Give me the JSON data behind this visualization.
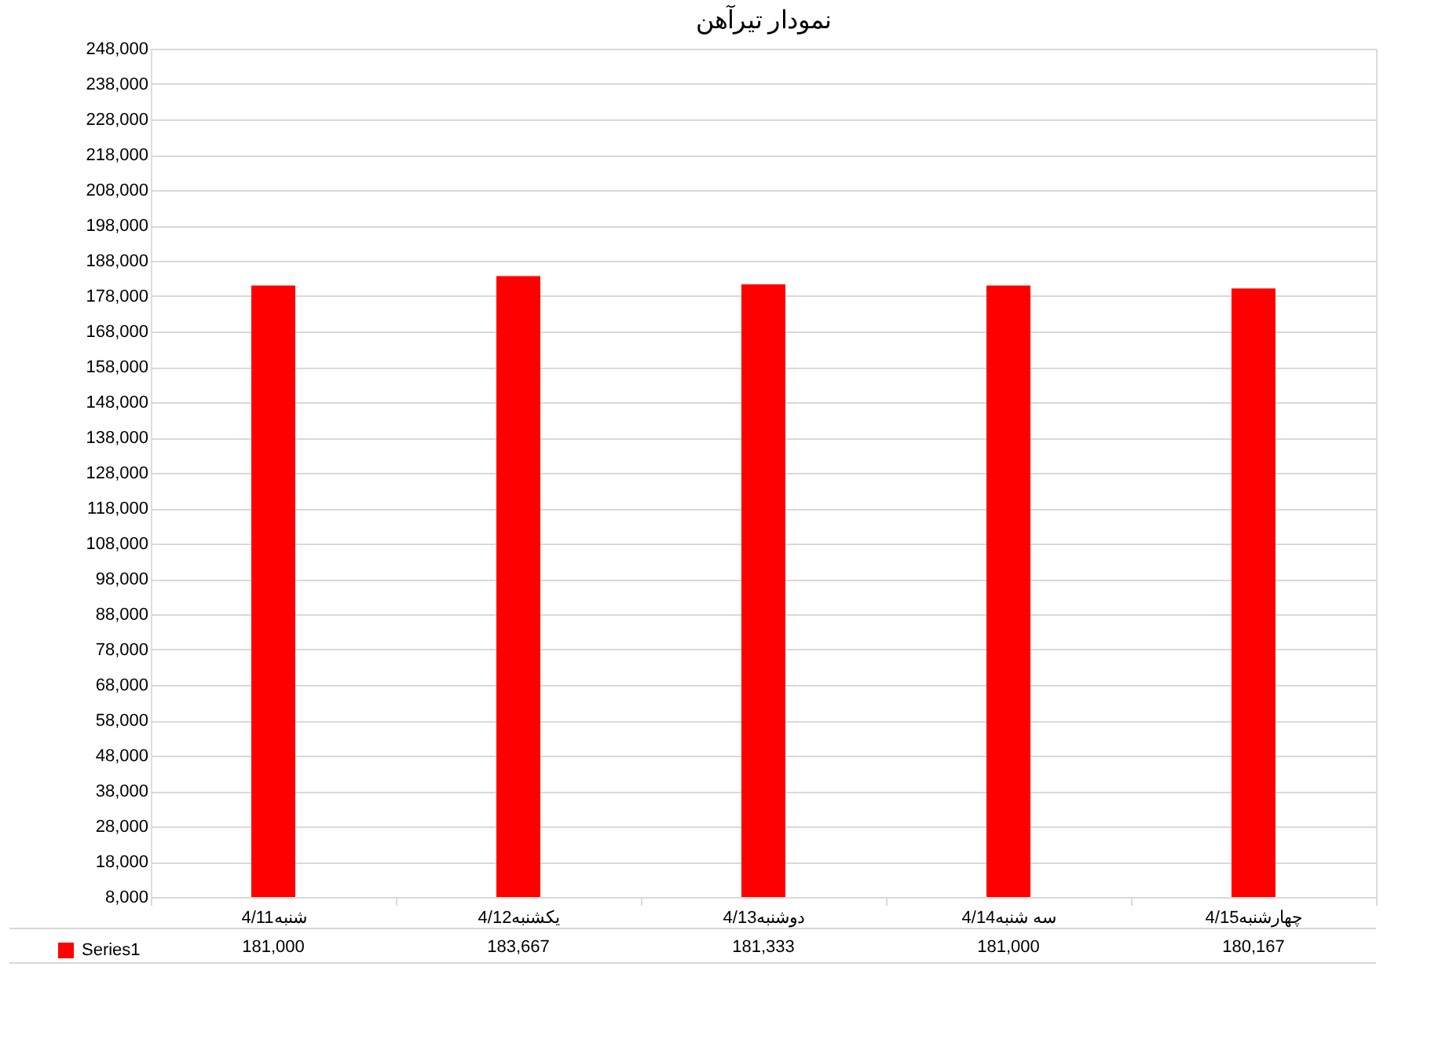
{
  "chart_data": {
    "type": "bar",
    "title": "نمودار تیرآهن",
    "categories": [
      "4/11شنبه",
      "4/12یکشنبه",
      "4/13دوشنبه",
      "4/14سه شنبه",
      "4/15چهارشنبه"
    ],
    "series": [
      {
        "name": "Series1",
        "color": "#ff0000",
        "values": [
          181000,
          183667,
          181333,
          181000,
          180167
        ],
        "value_labels": [
          "181,000",
          "183,667",
          "181,333",
          "181,000",
          "180,167"
        ]
      }
    ],
    "ylim": [
      8000,
      248000
    ],
    "yticks": [
      {
        "value": 8000,
        "label": "8,000"
      },
      {
        "value": 18000,
        "label": "18,000"
      },
      {
        "value": 28000,
        "label": "28,000"
      },
      {
        "value": 38000,
        "label": "38,000"
      },
      {
        "value": 48000,
        "label": "48,000"
      },
      {
        "value": 58000,
        "label": "58,000"
      },
      {
        "value": 68000,
        "label": "68,000"
      },
      {
        "value": 78000,
        "label": "78,000"
      },
      {
        "value": 88000,
        "label": "88,000"
      },
      {
        "value": 98000,
        "label": "98,000"
      },
      {
        "value": 108000,
        "label": "108,000"
      },
      {
        "value": 118000,
        "label": "118,000"
      },
      {
        "value": 128000,
        "label": "128,000"
      },
      {
        "value": 138000,
        "label": "138,000"
      },
      {
        "value": 148000,
        "label": "148,000"
      },
      {
        "value": 158000,
        "label": "158,000"
      },
      {
        "value": 168000,
        "label": "168,000"
      },
      {
        "value": 178000,
        "label": "178,000"
      },
      {
        "value": 188000,
        "label": "188,000"
      },
      {
        "value": 198000,
        "label": "198,000"
      },
      {
        "value": 208000,
        "label": "208,000"
      },
      {
        "value": 218000,
        "label": "218,000"
      },
      {
        "value": 228000,
        "label": "228,000"
      },
      {
        "value": 238000,
        "label": "238,000"
      },
      {
        "value": 248000,
        "label": "248,000"
      }
    ],
    "grid": "y",
    "legend": "bottom left"
  }
}
